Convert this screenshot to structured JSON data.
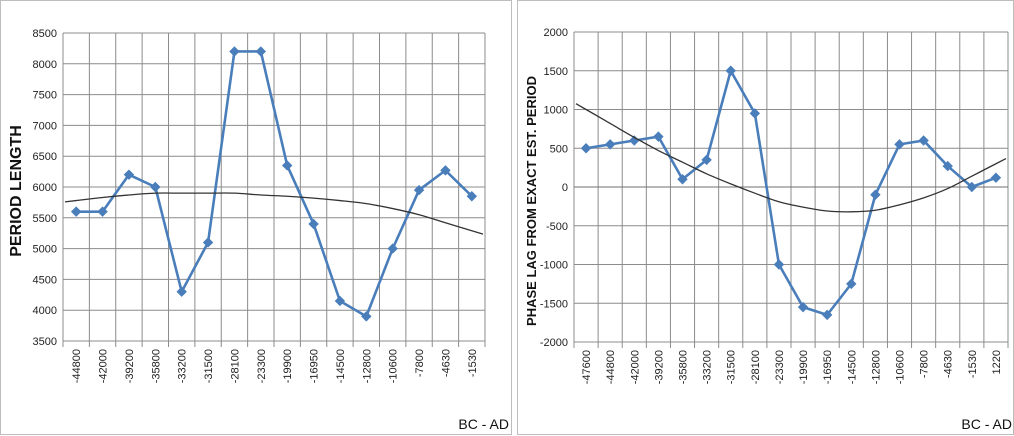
{
  "chart_data": [
    {
      "type": "line",
      "title": "",
      "xlabel": "BC - AD",
      "ylabel": "PERIOD LENGTH",
      "ylim": [
        3500,
        8500
      ],
      "ytick_step": 500,
      "grid": true,
      "categories": [
        "-44800",
        "-42000",
        "-39200",
        "-35800",
        "-33200",
        "-31500",
        "-28100",
        "-23300",
        "-19900",
        "-16950",
        "-14500",
        "-12800",
        "-10600",
        "-7800",
        "-4630",
        "-1530"
      ],
      "series": [
        {
          "color": "#4a7ebb",
          "marker": "diamond",
          "values": [
            5600,
            5600,
            6200,
            6000,
            4300,
            5100,
            8200,
            8200,
            6350,
            5400,
            4150,
            3900,
            5000,
            5950,
            6270,
            5850
          ]
        },
        {
          "color": "#333333",
          "marker": "none",
          "trend": "polynomial",
          "values": [
            5780,
            5830,
            5870,
            5900,
            5900,
            5900,
            5900,
            5870,
            5850,
            5820,
            5780,
            5730,
            5650,
            5550,
            5420,
            5290
          ]
        }
      ]
    },
    {
      "type": "line",
      "title": "",
      "xlabel": "BC - AD",
      "ylabel": "PHASE LAG FROM EXACT EST. PERIOD",
      "ylim": [
        -2000,
        2000
      ],
      "ytick_step": 500,
      "grid": true,
      "categories": [
        "-47600",
        "-44800",
        "-42000",
        "-39200",
        "-35800",
        "-33200",
        "-31500",
        "-28100",
        "-23300",
        "-19900",
        "-16950",
        "-14500",
        "-12800",
        "-10600",
        "-7800",
        "-4630",
        "-1530",
        "1220"
      ],
      "series": [
        {
          "color": "#4a7ebb",
          "marker": "diamond",
          "values": [
            500,
            550,
            600,
            650,
            100,
            350,
            1500,
            950,
            -1000,
            -1550,
            -1650,
            -1250,
            -100,
            550,
            600,
            270,
            0,
            120
          ]
        },
        {
          "color": "#333333",
          "marker": "none",
          "trend": "polynomial",
          "values": [
            1000,
            820,
            640,
            470,
            320,
            170,
            40,
            -80,
            -190,
            -260,
            -310,
            -320,
            -300,
            -230,
            -140,
            -20,
            140,
            300
          ]
        }
      ]
    }
  ]
}
